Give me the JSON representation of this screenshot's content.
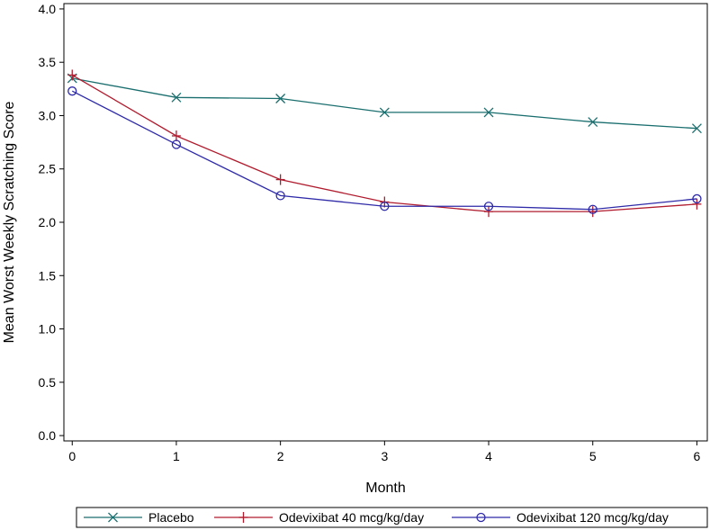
{
  "chart_data": {
    "type": "line",
    "title": "",
    "xlabel": "Month",
    "ylabel": "Mean Worst Weekly Scratching Score",
    "x": [
      0,
      1,
      2,
      3,
      4,
      5,
      6
    ],
    "xlim": [
      -0.08,
      6.1
    ],
    "ylim": [
      -0.05,
      4.05
    ],
    "yticks": [
      0.0,
      0.5,
      1.0,
      1.5,
      2.0,
      2.5,
      3.0,
      3.5,
      4.0
    ],
    "xtick_labels": [
      "0",
      "1",
      "2",
      "3",
      "4",
      "5",
      "6"
    ],
    "ytick_labels": [
      "0.0",
      "0.5",
      "1.0",
      "1.5",
      "2.0",
      "2.5",
      "3.0",
      "3.5",
      "4.0"
    ],
    "grid": true,
    "legend_position": "bottom",
    "series": [
      {
        "name": "Placebo",
        "color": "#1a6e6e",
        "marker": "x",
        "values": [
          3.35,
          3.17,
          3.16,
          3.03,
          3.03,
          2.94,
          2.88
        ]
      },
      {
        "name": "Odevixibat 40 mcg/kg/day",
        "color": "#b01c2e",
        "marker": "plus",
        "values": [
          3.38,
          2.81,
          2.4,
          2.19,
          2.1,
          2.1,
          2.17
        ]
      },
      {
        "name": "Odevixibat 120 mcg/kg/day",
        "color": "#2e2aa8",
        "marker": "circle",
        "values": [
          3.23,
          2.73,
          2.25,
          2.15,
          2.15,
          2.12,
          2.22
        ]
      }
    ]
  }
}
